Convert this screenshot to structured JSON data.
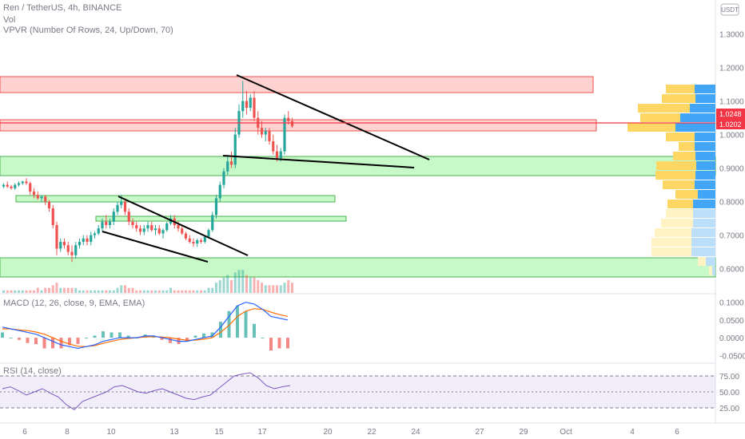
{
  "header": {
    "symbol_line": "Ren / TetherUS, 4h, BINANCE",
    "vol_label": "Vol",
    "vpvr_label": "VPVR (Number Of Rows, 24, Up/Down, 70)",
    "currency_button": "USDT"
  },
  "colors": {
    "up": "#26a69a",
    "down": "#ef5350",
    "macd": "#2962ff",
    "signal": "#ff6d00",
    "rsi": "#7e57c2",
    "zone_green": "#b9f6b9",
    "zone_red": "#ffc7c7",
    "price_tag": "#f23645"
  },
  "chart_data": [
    {
      "type": "candlestick",
      "panel": "price",
      "scale_note": "price axis, USDT",
      "ylim": [
        0.58,
        1.33
      ],
      "y_ticks": [
        "1.3000",
        "1.2000",
        "1.1000",
        "1.0000",
        "0.9000",
        "0.8000",
        "0.7000",
        "0.6000"
      ],
      "x_ticks": [
        "6",
        "8",
        "10",
        "13",
        "15",
        "17",
        "20",
        "22",
        "24",
        "27",
        "29",
        "Oct",
        "4",
        "6"
      ],
      "price_tags": [
        {
          "value": "1.0248",
          "color": "#f23645"
        },
        {
          "value": "1.0202",
          "color": "#f23645"
        }
      ],
      "candles_ohlc": [
        [
          0.845,
          0.855,
          0.84,
          0.85
        ],
        [
          0.85,
          0.86,
          0.84,
          0.845
        ],
        [
          0.845,
          0.85,
          0.835,
          0.84
        ],
        [
          0.84,
          0.855,
          0.835,
          0.85
        ],
        [
          0.85,
          0.86,
          0.845,
          0.855
        ],
        [
          0.855,
          0.862,
          0.85,
          0.86
        ],
        [
          0.86,
          0.87,
          0.85,
          0.855
        ],
        [
          0.855,
          0.86,
          0.82,
          0.83
        ],
        [
          0.83,
          0.84,
          0.81,
          0.82
        ],
        [
          0.82,
          0.83,
          0.805,
          0.81
        ],
        [
          0.81,
          0.82,
          0.8,
          0.815
        ],
        [
          0.815,
          0.82,
          0.79,
          0.8
        ],
        [
          0.8,
          0.805,
          0.77,
          0.78
        ],
        [
          0.78,
          0.79,
          0.72,
          0.73
        ],
        [
          0.73,
          0.74,
          0.64,
          0.66
        ],
        [
          0.66,
          0.69,
          0.65,
          0.68
        ],
        [
          0.68,
          0.69,
          0.66,
          0.67
        ],
        [
          0.67,
          0.68,
          0.64,
          0.65
        ],
        [
          0.65,
          0.67,
          0.62,
          0.64
        ],
        [
          0.64,
          0.68,
          0.63,
          0.67
        ],
        [
          0.67,
          0.69,
          0.66,
          0.68
        ],
        [
          0.68,
          0.7,
          0.67,
          0.69
        ],
        [
          0.69,
          0.7,
          0.67,
          0.68
        ],
        [
          0.68,
          0.71,
          0.67,
          0.7
        ],
        [
          0.7,
          0.71,
          0.69,
          0.705
        ],
        [
          0.705,
          0.73,
          0.7,
          0.72
        ],
        [
          0.72,
          0.75,
          0.71,
          0.74
        ],
        [
          0.74,
          0.76,
          0.72,
          0.73
        ],
        [
          0.73,
          0.75,
          0.72,
          0.74
        ],
        [
          0.74,
          0.78,
          0.73,
          0.77
        ],
        [
          0.77,
          0.8,
          0.76,
          0.79
        ],
        [
          0.79,
          0.82,
          0.78,
          0.8
        ],
        [
          0.8,
          0.81,
          0.76,
          0.77
        ],
        [
          0.77,
          0.78,
          0.73,
          0.74
        ],
        [
          0.74,
          0.75,
          0.72,
          0.73
        ],
        [
          0.73,
          0.74,
          0.71,
          0.72
        ],
        [
          0.72,
          0.73,
          0.7,
          0.71
        ],
        [
          0.71,
          0.73,
          0.7,
          0.72
        ],
        [
          0.72,
          0.74,
          0.71,
          0.73
        ],
        [
          0.73,
          0.74,
          0.71,
          0.715
        ],
        [
          0.715,
          0.73,
          0.7,
          0.72
        ],
        [
          0.72,
          0.73,
          0.7,
          0.705
        ],
        [
          0.705,
          0.72,
          0.69,
          0.715
        ],
        [
          0.715,
          0.74,
          0.71,
          0.735
        ],
        [
          0.735,
          0.76,
          0.73,
          0.75
        ],
        [
          0.75,
          0.76,
          0.72,
          0.73
        ],
        [
          0.73,
          0.74,
          0.71,
          0.72
        ],
        [
          0.72,
          0.73,
          0.7,
          0.705
        ],
        [
          0.705,
          0.71,
          0.685,
          0.69
        ],
        [
          0.69,
          0.7,
          0.675,
          0.68
        ],
        [
          0.68,
          0.69,
          0.665,
          0.675
        ],
        [
          0.675,
          0.69,
          0.665,
          0.685
        ],
        [
          0.685,
          0.69,
          0.675,
          0.68
        ],
        [
          0.68,
          0.7,
          0.675,
          0.695
        ],
        [
          0.695,
          0.72,
          0.69,
          0.715
        ],
        [
          0.715,
          0.77,
          0.71,
          0.76
        ],
        [
          0.76,
          0.82,
          0.75,
          0.81
        ],
        [
          0.81,
          0.86,
          0.8,
          0.85
        ],
        [
          0.85,
          0.9,
          0.84,
          0.89
        ],
        [
          0.89,
          0.94,
          0.88,
          0.92
        ],
        [
          0.92,
          0.95,
          0.9,
          0.91
        ],
        [
          0.91,
          1.02,
          0.9,
          1.0
        ],
        [
          1.0,
          1.09,
          0.99,
          1.07
        ],
        [
          1.07,
          1.16,
          1.05,
          1.1
        ],
        [
          1.1,
          1.13,
          1.06,
          1.08
        ],
        [
          1.08,
          1.12,
          1.07,
          1.11
        ],
        [
          1.11,
          1.13,
          1.04,
          1.05
        ],
        [
          1.05,
          1.07,
          1.0,
          1.02
        ],
        [
          1.02,
          1.04,
          0.99,
          1.0
        ],
        [
          1.0,
          1.02,
          0.98,
          1.01
        ],
        [
          1.01,
          1.02,
          0.97,
          0.98
        ],
        [
          0.98,
          1.0,
          0.94,
          0.95
        ],
        [
          0.95,
          0.97,
          0.92,
          0.93
        ],
        [
          0.93,
          0.96,
          0.92,
          0.95
        ],
        [
          0.95,
          1.06,
          0.94,
          1.05
        ],
        [
          1.05,
          1.07,
          1.03,
          1.04
        ],
        [
          1.04,
          1.05,
          1.02,
          1.025
        ]
      ],
      "volume": [
        1,
        1,
        1,
        1,
        1,
        1,
        1,
        1,
        1,
        2,
        1,
        2,
        2,
        3,
        4,
        2,
        2,
        2,
        2,
        2,
        1,
        1,
        1,
        1,
        1,
        1,
        1,
        1,
        1,
        1,
        2,
        3,
        3,
        2,
        2,
        1,
        1,
        1,
        1,
        1,
        1,
        1,
        1,
        1,
        2,
        1,
        1,
        1,
        1,
        1,
        1,
        1,
        1,
        1,
        2,
        2,
        4,
        5,
        6,
        7,
        5,
        8,
        9,
        9,
        7,
        6,
        6,
        5,
        4,
        3,
        3,
        3,
        3,
        3,
        4,
        5,
        4
      ]
    },
    {
      "type": "line",
      "panel": "macd",
      "series": [
        {
          "name": "MACD",
          "values": [
            0.03,
            0.025,
            0.02,
            0.015,
            0.01,
            0.0,
            -0.01,
            -0.02,
            -0.025,
            -0.03,
            -0.025,
            -0.02,
            -0.01,
            -0.005,
            0.0,
            0.0,
            0.0,
            0.005,
            0.005,
            0.0,
            -0.005,
            -0.01,
            -0.01,
            -0.005,
            0.0,
            0.005,
            0.03,
            0.06,
            0.09,
            0.1,
            0.095,
            0.08,
            0.06,
            0.055,
            0.05
          ]
        },
        {
          "name": "Signal",
          "values": [
            0.025,
            0.025,
            0.022,
            0.02,
            0.016,
            0.01,
            0.0,
            -0.01,
            -0.018,
            -0.024,
            -0.025,
            -0.022,
            -0.016,
            -0.01,
            -0.005,
            -0.002,
            0.0,
            0.002,
            0.003,
            0.002,
            0.0,
            -0.004,
            -0.007,
            -0.007,
            -0.004,
            0.0,
            0.015,
            0.035,
            0.06,
            0.075,
            0.082,
            0.08,
            0.072,
            0.065,
            0.06
          ]
        }
      ],
      "y_ticks": [
        "0.1000",
        "0.0500",
        "0.0000",
        "-0.0500"
      ],
      "ylim": [
        -0.065,
        0.115
      ]
    },
    {
      "type": "line",
      "panel": "rsi",
      "series": [
        {
          "name": "RSI",
          "values": [
            55,
            58,
            52,
            45,
            50,
            55,
            48,
            42,
            30,
            22,
            35,
            40,
            45,
            50,
            58,
            60,
            55,
            50,
            48,
            52,
            55,
            50,
            45,
            40,
            38,
            42,
            45,
            55,
            65,
            75,
            78,
            80,
            72,
            60,
            55,
            58,
            60
          ]
        }
      ],
      "y_ticks": [
        "75.00",
        "50.00",
        "25.00"
      ],
      "ylim": [
        20,
        85
      ]
    }
  ],
  "panels": {
    "macd_label": "MACD (12, 26, close, 9, EMA, EMA)",
    "rsi_label": "RSI (14, close)"
  }
}
